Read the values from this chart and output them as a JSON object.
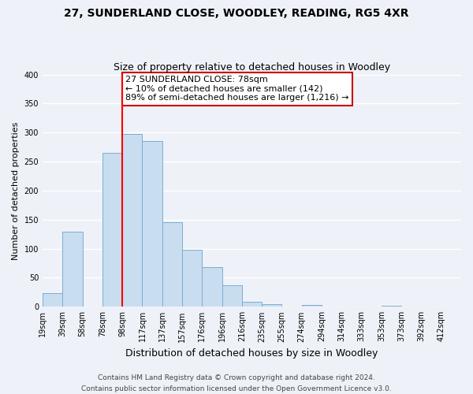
{
  "title": "27, SUNDERLAND CLOSE, WOODLEY, READING, RG5 4XR",
  "subtitle": "Size of property relative to detached houses in Woodley",
  "xlabel": "Distribution of detached houses by size in Woodley",
  "ylabel": "Number of detached properties",
  "bar_labels": [
    "19sqm",
    "39sqm",
    "58sqm",
    "78sqm",
    "98sqm",
    "117sqm",
    "137sqm",
    "157sqm",
    "176sqm",
    "196sqm",
    "216sqm",
    "235sqm",
    "255sqm",
    "274sqm",
    "294sqm",
    "314sqm",
    "333sqm",
    "353sqm",
    "373sqm",
    "392sqm",
    "412sqm"
  ],
  "bar_heights": [
    23,
    130,
    0,
    265,
    297,
    285,
    145,
    98,
    68,
    37,
    9,
    5,
    0,
    3,
    0,
    0,
    0,
    2,
    0,
    0,
    0
  ],
  "bar_color": "#c9ddf0",
  "bar_edge_color": "#7aadce",
  "ylim": [
    0,
    400
  ],
  "yticks": [
    0,
    50,
    100,
    150,
    200,
    250,
    300,
    350,
    400
  ],
  "vline_color": "#ff0000",
  "annotation_text": "27 SUNDERLAND CLOSE: 78sqm\n← 10% of detached houses are smaller (142)\n89% of semi-detached houses are larger (1,216) →",
  "annotation_box_color": "#ffffff",
  "annotation_box_edge": "#cc0000",
  "footer1": "Contains HM Land Registry data © Crown copyright and database right 2024.",
  "footer2": "Contains public sector information licensed under the Open Government Licence v3.0.",
  "background_color": "#eef2f8",
  "grid_color": "#ffffff",
  "title_fontsize": 10,
  "subtitle_fontsize": 9,
  "xlabel_fontsize": 9,
  "ylabel_fontsize": 8,
  "tick_fontsize": 7,
  "annotation_fontsize": 8,
  "footer_fontsize": 6.5
}
